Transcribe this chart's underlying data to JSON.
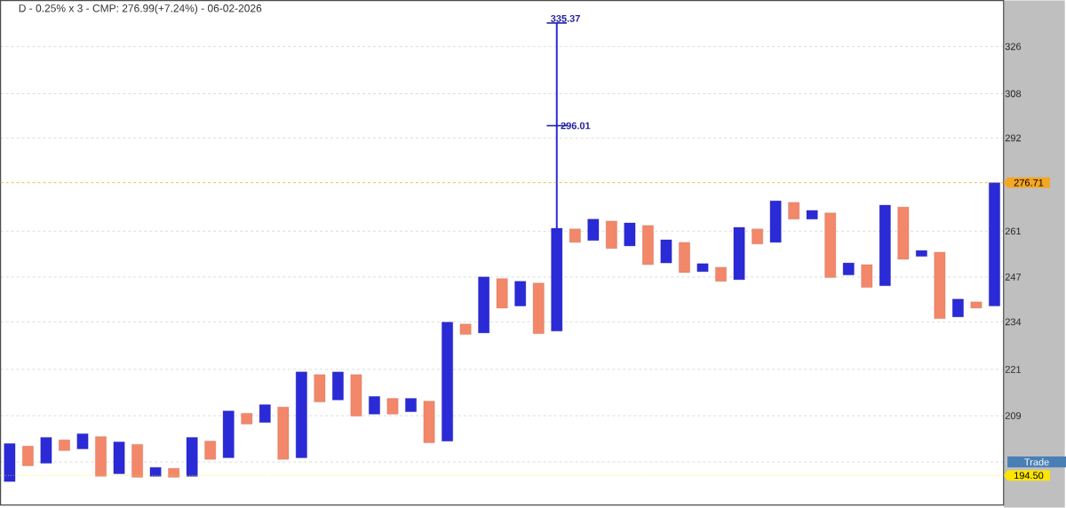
{
  "chart_data": {
    "type": "bar",
    "title": "D - 0.25% x 3 - CMP: 276.99(+7.24%) - 06-02-2026",
    "categories": [
      null,
      null,
      null,
      null,
      null,
      null,
      null,
      null,
      null,
      null,
      null,
      null,
      null,
      null,
      null,
      null,
      null,
      null,
      null,
      null,
      null,
      null,
      null,
      null,
      null,
      null,
      null,
      null,
      null,
      null,
      null,
      null,
      null,
      null,
      null,
      null,
      null,
      null,
      null,
      null,
      null,
      null,
      null,
      null,
      null,
      null,
      null,
      null,
      null,
      null,
      null,
      null,
      null,
      null,
      null
    ],
    "series": [
      {
        "color": "#2a2ad6",
        "errors": [
          null,
          null,
          null,
          null,
          null,
          null,
          null,
          null,
          null,
          null,
          null,
          null,
          null,
          null,
          null,
          null,
          null,
          null,
          null,
          null,
          null,
          null,
          null,
          null,
          null,
          null,
          null,
          null,
          null,
          null,
          [
            261.9,
            335.37
          ],
          null,
          null,
          null,
          null,
          null,
          null,
          null,
          null,
          null,
          null,
          null,
          null,
          null,
          null,
          null,
          null,
          null,
          null,
          null,
          null,
          null,
          null,
          null,
          null
        ],
        "base": [
          193.1,
          null,
          197.4,
          null,
          200.8,
          null,
          194.9,
          null,
          194.3,
          null,
          194.3,
          null,
          198.7,
          null,
          207.3,
          null,
          198.7,
          null,
          213.0,
          null,
          209.4,
          null,
          210.0,
          null,
          202.7,
          null,
          230.9,
          null,
          238.5,
          null,
          231.4,
          null,
          258.1,
          null,
          256.4,
          null,
          251.2,
          null,
          248.6,
          null,
          246.2,
          null,
          257.5,
          null,
          264.8,
          null,
          247.6,
          null,
          244.4,
          null,
          253.2,
          null,
          235.4,
          null,
          238.5
        ],
        "values": [
          9.0,
          null,
          6.2,
          null,
          3.7,
          null,
          7.6,
          null,
          2.1,
          null,
          9.3,
          null,
          11.5,
          null,
          4.5,
          null,
          21.6,
          null,
          7.3,
          null,
          4.5,
          null,
          3.4,
          null,
          31.2,
          null,
          16.1,
          null,
          7.2,
          null,
          30.5,
          null,
          6.7,
          null,
          7.2,
          null,
          7.1,
          null,
          2.4,
          null,
          16.0,
          null,
          13.2,
          null,
          2.8,
          null,
          3.6,
          null,
          24.9,
          null,
          1.8,
          null,
          5.1,
          null,
          38.2
        ]
      },
      {
        "color": "#f2876a",
        "base": [
          null,
          196.8,
          null,
          200.4,
          null,
          194.3,
          null,
          194.1,
          null,
          194.1,
          null,
          198.3,
          null,
          206.9,
          null,
          198.3,
          null,
          212.5,
          null,
          208.9,
          null,
          209.4,
          null,
          202.3,
          null,
          230.5,
          null,
          237.9,
          null,
          230.7,
          null,
          257.5,
          null,
          255.6,
          null,
          250.7,
          null,
          248.3,
          null,
          245.7,
          null,
          257.0,
          null,
          264.8,
          null,
          246.8,
          null,
          243.9,
          null,
          252.3,
          null,
          234.9,
          null,
          237.9,
          null
        ],
        "values": [
          null,
          4.7,
          null,
          2.6,
          null,
          9.5,
          null,
          7.8,
          null,
          2.1,
          null,
          4.4,
          null,
          2.7,
          null,
          12.9,
          null,
          7.1,
          null,
          10.7,
          null,
          4.0,
          null,
          10.4,
          null,
          2.9,
          null,
          8.6,
          null,
          14.5,
          null,
          4.2,
          null,
          8.6,
          null,
          12.1,
          null,
          9.2,
          null,
          4.2,
          null,
          4.7,
          null,
          5.4,
          null,
          20.0,
          null,
          6.8,
          null,
          16.4,
          null,
          19.6,
          null,
          1.8,
          null
        ]
      }
    ],
    "annotations": [
      "335.37",
      "296.01",
      "Trade"
    ],
    "ref_lines": [
      {
        "axis": "y",
        "value": 276.71,
        "label": "276.71",
        "color": "#f5a623",
        "line_style": "dashed"
      },
      {
        "axis": "y",
        "value": 194.5,
        "label": "194.50",
        "color": "#ffe600",
        "line_style": "dotted"
      }
    ],
    "log": "y",
    "ylim": [
      187.7,
      344.6
    ],
    "yticks": [
      326,
      308,
      292,
      261,
      247,
      234,
      221,
      209,
      {
        "value": 197.7,
        "label": null
      }
    ],
    "grid": "y",
    "tick_labels": "y"
  }
}
